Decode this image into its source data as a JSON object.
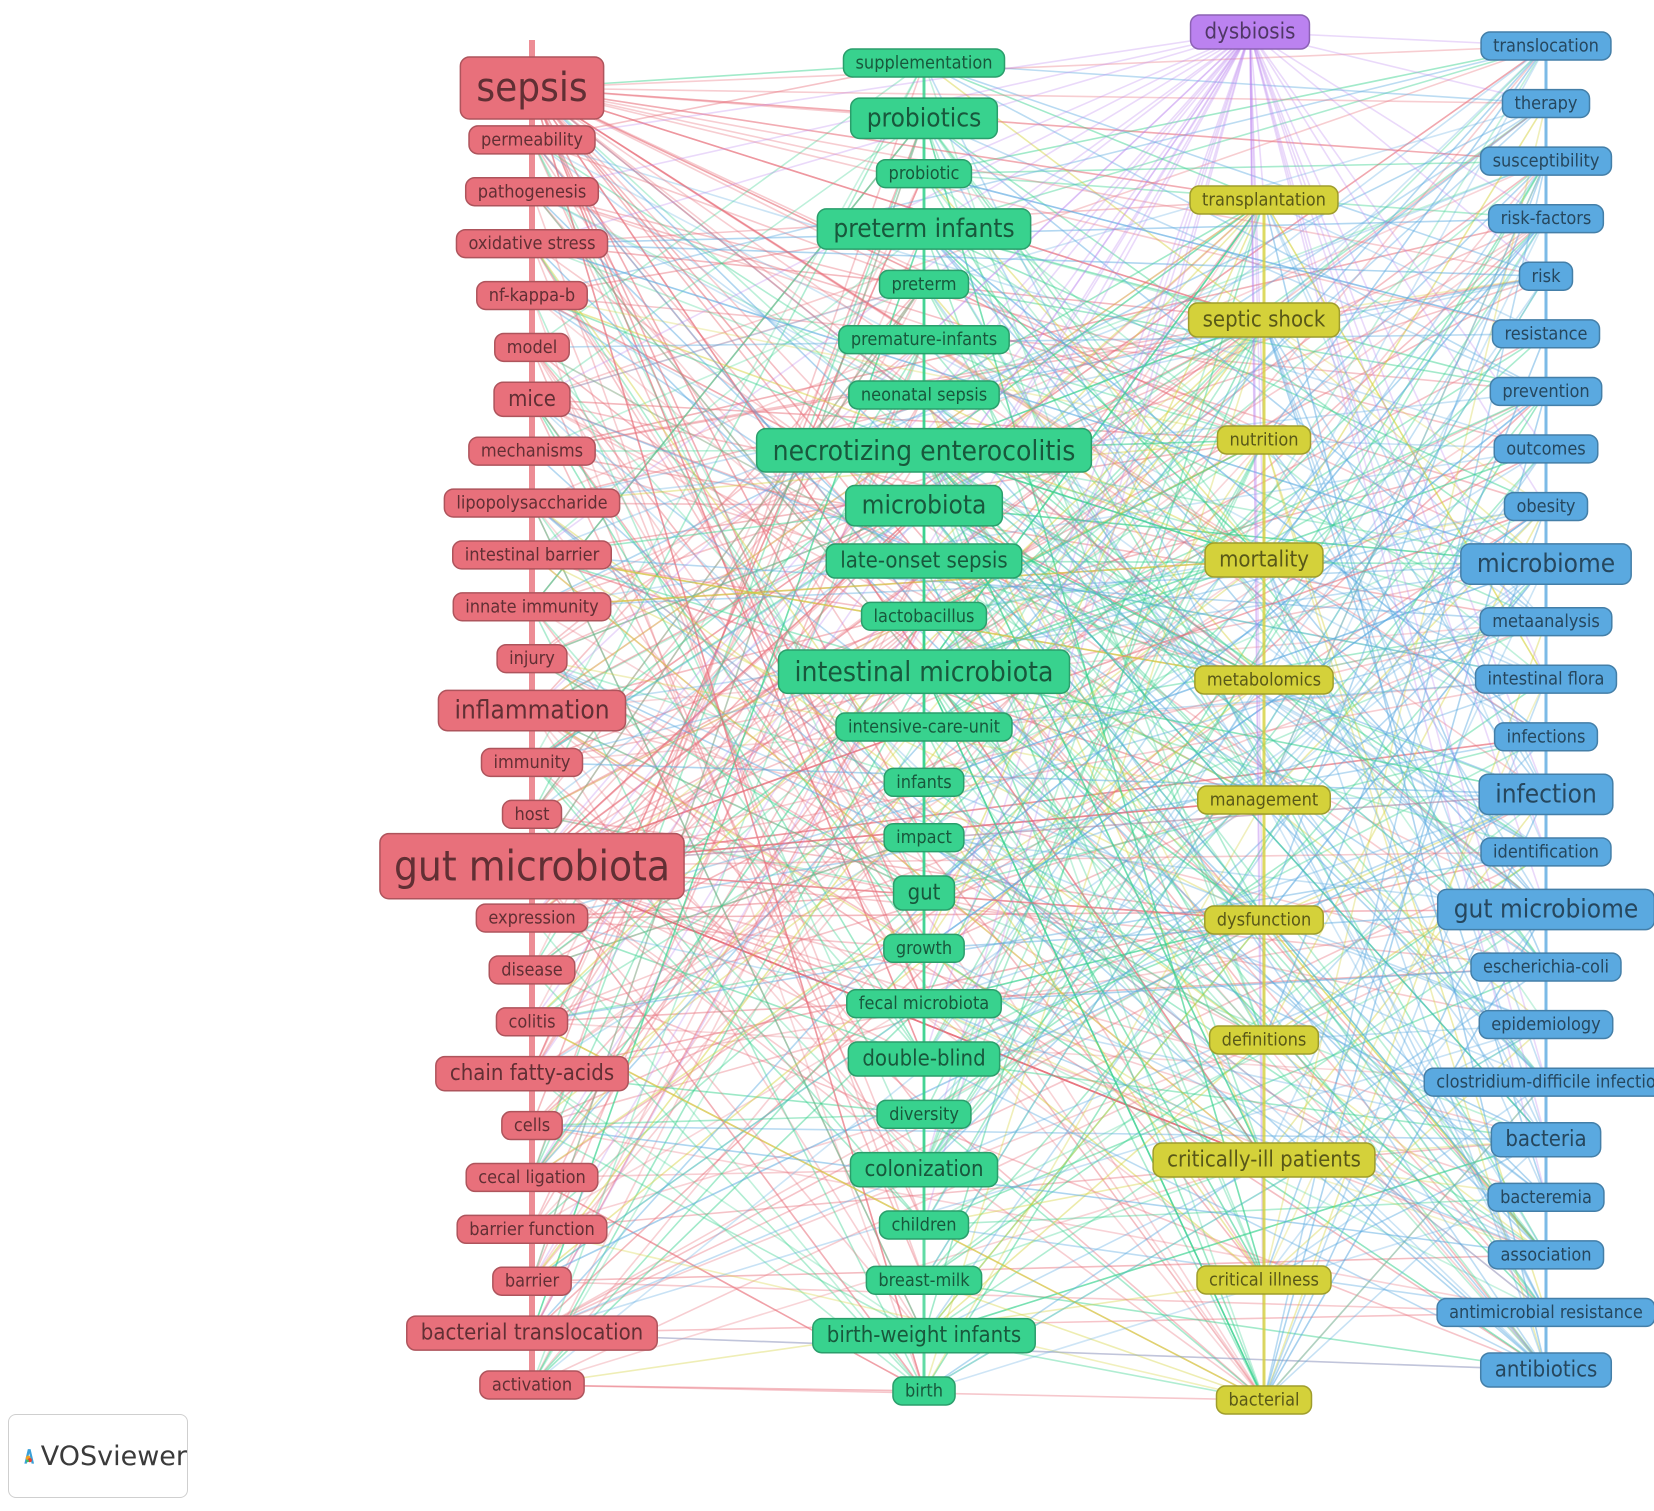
{
  "columns": [
    {
      "color": "#e8707b",
      "items": [
        [
          "sepsis",
          5
        ],
        [
          "permeability",
          1
        ],
        [
          "pathogenesis",
          1
        ],
        [
          "oxidative stress",
          1
        ],
        [
          "nf-kappa-b",
          1
        ],
        [
          "model",
          1
        ],
        [
          "mice",
          2
        ],
        [
          "mechanisms",
          1
        ],
        [
          "lipopolysaccharide",
          1
        ],
        [
          "intestinal barrier",
          1
        ],
        [
          "innate immunity",
          1
        ],
        [
          "injury",
          1
        ],
        [
          "inflammation",
          3
        ],
        [
          "immunity",
          1
        ],
        [
          "host",
          1
        ],
        [
          "gut microbiota",
          6
        ],
        [
          "expression",
          1
        ],
        [
          "disease",
          1
        ],
        [
          "colitis",
          1
        ],
        [
          "chain fatty-acids",
          2
        ],
        [
          "cells",
          1
        ],
        [
          "cecal ligation",
          1
        ],
        [
          "barrier function",
          1
        ],
        [
          "barrier",
          1
        ],
        [
          "bacterial translocation",
          2
        ],
        [
          "activation",
          1
        ]
      ]
    },
    {
      "color": "#38d28e",
      "items": [
        [
          "supplementation",
          1
        ],
        [
          "probiotics",
          3
        ],
        [
          "probiotic",
          1
        ],
        [
          "preterm infants",
          3
        ],
        [
          "preterm",
          1
        ],
        [
          "premature-infants",
          1
        ],
        [
          "neonatal sepsis",
          1
        ],
        [
          "necrotizing enterocolitis",
          4
        ],
        [
          "microbiota",
          3
        ],
        [
          "late-onset sepsis",
          2
        ],
        [
          "lactobacillus",
          1
        ],
        [
          "intestinal microbiota",
          4
        ],
        [
          "intensive-care-unit",
          1
        ],
        [
          "infants",
          1
        ],
        [
          "impact",
          1
        ],
        [
          "gut",
          2
        ],
        [
          "growth",
          1
        ],
        [
          "fecal microbiota",
          1
        ],
        [
          "double-blind",
          2
        ],
        [
          "diversity",
          1
        ],
        [
          "colonization",
          2
        ],
        [
          "children",
          1
        ],
        [
          "breast-milk",
          1
        ],
        [
          "birth-weight infants",
          2
        ],
        [
          "birth",
          1
        ]
      ]
    },
    {
      "color": "#d4d13a",
      "items": [
        [
          "transplantation",
          1
        ],
        [
          "septic shock",
          2
        ],
        [
          "nutrition",
          1
        ],
        [
          "mortality",
          2
        ],
        [
          "metabolomics",
          1
        ],
        [
          "management",
          1
        ],
        [
          "dysfunction",
          1
        ],
        [
          "definitions",
          1
        ],
        [
          "critically-ill patients",
          2
        ],
        [
          "critical illness",
          1
        ],
        [
          "bacterial",
          1
        ]
      ]
    },
    {
      "color": "#5aa9e0",
      "items": [
        [
          "translocation",
          1
        ],
        [
          "therapy",
          1
        ],
        [
          "susceptibility",
          1
        ],
        [
          "risk-factors",
          1
        ],
        [
          "risk",
          1
        ],
        [
          "resistance",
          1
        ],
        [
          "prevention",
          1
        ],
        [
          "outcomes",
          1
        ],
        [
          "obesity",
          1
        ],
        [
          "microbiome",
          3
        ],
        [
          "metaanalysis",
          1
        ],
        [
          "intestinal flora",
          1
        ],
        [
          "infections",
          1
        ],
        [
          "infection",
          3
        ],
        [
          "identification",
          1
        ],
        [
          "gut microbiome",
          3
        ],
        [
          "escherichia-coli",
          1
        ],
        [
          "epidemiology",
          1
        ],
        [
          "clostridium-difficile infectio",
          1
        ],
        [
          "bacteria",
          2
        ],
        [
          "bacteremia",
          1
        ],
        [
          "association",
          1
        ],
        [
          "antimicrobial resistance",
          1
        ],
        [
          "antibiotics",
          2
        ]
      ]
    }
  ],
  "dysbiosis": {
    "label": "dysbiosis",
    "color": "#bb82f0"
  },
  "logo_text": "VOSviewer"
}
